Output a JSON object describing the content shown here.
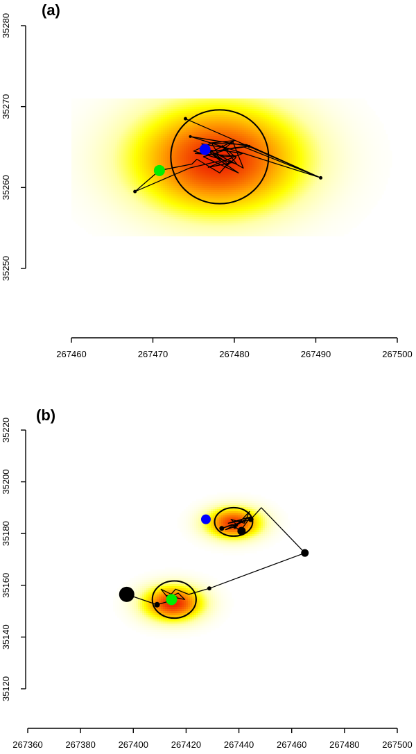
{
  "chart_data": [
    {
      "type": "scatter",
      "panel_label": "(a)",
      "xlim": [
        267460,
        267500
      ],
      "ylim": [
        35250,
        35280
      ],
      "x_ticks": [
        267460,
        267470,
        267480,
        267490,
        267500
      ],
      "y_ticks": [
        35250,
        35260,
        35270,
        35280
      ],
      "density_centers": [
        {
          "x": 267478,
          "y": 35263.5,
          "sx": 7,
          "sy": 4.5,
          "weight": 1
        }
      ],
      "density_extent": {
        "x": [
          267460,
          267500
        ],
        "y": [
          35254,
          35271
        ]
      },
      "contours": [
        {
          "cx": 267478.2,
          "cy": 35263.8,
          "rx": 6,
          "ry": 5.8,
          "rotation": 0
        }
      ],
      "track": [
        [
          267474.0,
          35268.5
        ],
        [
          267490.6,
          35261.2
        ],
        [
          267481.5,
          35265.3
        ],
        [
          267477.0,
          35265.5
        ],
        [
          267480.0,
          35265.8
        ],
        [
          267478.5,
          35264.6
        ],
        [
          267481.0,
          35264.2
        ],
        [
          267476.8,
          35262.5
        ],
        [
          267479.8,
          35263.1
        ],
        [
          267478.1,
          35264.0
        ],
        [
          267477.2,
          35265.5
        ],
        [
          267475.0,
          35264.5
        ],
        [
          267480.3,
          35262.9
        ],
        [
          267478.5,
          35265.2
        ],
        [
          267480.2,
          35263.7
        ],
        [
          267479.1,
          35262.7
        ],
        [
          267477.0,
          35264.3
        ],
        [
          267479.8,
          35265.7
        ],
        [
          267481.1,
          35262.4
        ],
        [
          267479.5,
          35263.3
        ],
        [
          267478.2,
          35261.8
        ],
        [
          267475.4,
          35263.5
        ],
        [
          267474.8,
          35262.9
        ],
        [
          267470.8,
          35262.1
        ],
        [
          267467.8,
          35259.5
        ],
        [
          267474.5,
          35262.4
        ],
        [
          267478.3,
          35263.3
        ],
        [
          267480.5,
          35261.8
        ],
        [
          267476.2,
          35263.8
        ],
        [
          267479.5,
          35264.8
        ],
        [
          267476.0,
          35265.4
        ],
        [
          267479.0,
          35263.1
        ],
        [
          267476.4,
          35264.7
        ],
        [
          267478.8,
          35263.8
        ],
        [
          267480.2,
          35263.9
        ],
        [
          267475.2,
          35264.2
        ],
        [
          267481.2,
          35265.0
        ],
        [
          267490.6,
          35261.2
        ],
        [
          267474.6,
          35266.3
        ],
        [
          267481.8,
          35265.1
        ],
        [
          267479.9,
          35264.9
        ],
        [
          267478.0,
          35264.5
        ],
        [
          267476.4,
          35264.7
        ]
      ],
      "track_vertex_markers": [
        {
          "x": 267474.0,
          "y": 35268.5,
          "r": 2.5
        },
        {
          "x": 267490.6,
          "y": 35261.2,
          "r": 2.5
        },
        {
          "x": 267467.8,
          "y": 35259.5,
          "r": 2.5
        },
        {
          "x": 267474.6,
          "y": 35266.3,
          "r": 2
        },
        {
          "x": 267481.8,
          "y": 35265.1,
          "r": 2
        }
      ],
      "points": [
        {
          "x": 267476.4,
          "y": 35264.7,
          "color": "#0000ff",
          "r": 8
        },
        {
          "x": 267470.8,
          "y": 35262.1,
          "color": "#00ee00",
          "r": 8
        }
      ]
    },
    {
      "type": "scatter",
      "panel_label": "(b)",
      "xlim": [
        267360,
        267500
      ],
      "ylim": [
        35120,
        35220
      ],
      "x_ticks": [
        267360,
        267380,
        267400,
        267420,
        267440,
        267460,
        267480,
        267500
      ],
      "y_ticks": [
        35120,
        35140,
        35160,
        35180,
        35200,
        35220
      ],
      "density_centers": [
        {
          "x": 267415,
          "y": 35153,
          "sx": 7.5,
          "sy": 4.5,
          "weight": 1
        },
        {
          "x": 267438,
          "y": 35184,
          "sx": 7,
          "sy": 4,
          "weight": 0.95
        }
      ],
      "contours": [
        {
          "cx": 267415.5,
          "cy": 35154.5,
          "rx": 8.3,
          "ry": 7.2,
          "rotation": 0
        },
        {
          "cx": 267438.0,
          "cy": 35184.5,
          "rx": 7.2,
          "ry": 5.5,
          "rotation": 0
        }
      ],
      "track": [
        [
          267397.5,
          35156.5
        ],
        [
          267409.0,
          35152.5
        ],
        [
          267414.0,
          35154.0
        ],
        [
          267410.5,
          35158.5
        ],
        [
          267416.5,
          35155.5
        ],
        [
          267412.5,
          35156.0
        ],
        [
          267419.5,
          35154.5
        ],
        [
          267417.0,
          35157.0
        ],
        [
          267413.0,
          35155.0
        ],
        [
          267416.0,
          35158.5
        ],
        [
          267421.0,
          35156.5
        ],
        [
          267428.8,
          35158.8
        ],
        [
          267465.0,
          35172.5
        ],
        [
          267448.5,
          35190.0
        ],
        [
          267444.5,
          35185.5
        ],
        [
          267433.5,
          35182.0
        ],
        [
          267437.5,
          35183.5
        ],
        [
          267440.5,
          35181.0
        ],
        [
          267444.5,
          35186.5
        ],
        [
          267436.0,
          35184.0
        ],
        [
          267441.0,
          35185.0
        ],
        [
          267438.0,
          35182.5
        ],
        [
          267443.5,
          35186.0
        ],
        [
          267435.0,
          35181.5
        ],
        [
          267439.5,
          35183.0
        ],
        [
          267437.0,
          35185.5
        ],
        [
          267442.0,
          35184.0
        ],
        [
          267444.0,
          35188.5
        ],
        [
          267438.5,
          35182.5
        ]
      ],
      "track_vertex_markers": [
        {
          "x": 267428.8,
          "y": 35158.8,
          "r": 3
        },
        {
          "x": 267409.0,
          "y": 35152.5,
          "r": 4
        },
        {
          "x": 267433.5,
          "y": 35182.0,
          "r": 3.5
        },
        {
          "x": 267444.5,
          "y": 35185.5,
          "r": 4
        },
        {
          "x": 267438.5,
          "y": 35182.5,
          "r": 2.5
        }
      ],
      "points": [
        {
          "x": 267397.5,
          "y": 35156.5,
          "color": "#000000",
          "r": 11
        },
        {
          "x": 267465.0,
          "y": 35172.5,
          "color": "#000000",
          "r": 5.5
        },
        {
          "x": 267441.0,
          "y": 35181.0,
          "color": "#000000",
          "r": 6
        },
        {
          "x": 267427.5,
          "y": 35185.5,
          "color": "#0000ff",
          "r": 7
        },
        {
          "x": 267414.5,
          "y": 35154.5,
          "color": "#00ee00",
          "r": 8
        }
      ]
    }
  ],
  "colors": {
    "axis": "#000000",
    "heat_low": "#ffff00",
    "heat_mid": "#ff9900",
    "heat_high": "#ee2200"
  }
}
